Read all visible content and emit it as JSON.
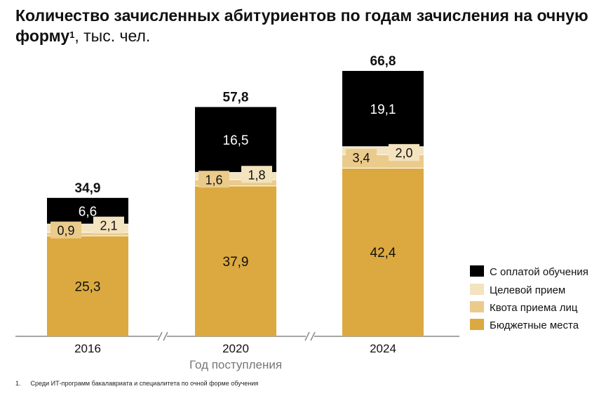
{
  "title": {
    "main": "Количество зачисленных абитуриентов по годам зачисления на очную форму",
    "sup": "1",
    "unit": ", тыс. чел."
  },
  "chart_data": {
    "type": "bar",
    "stacked": true,
    "categories": [
      "2016",
      "2020",
      "2024"
    ],
    "xlabel": "Год поступления",
    "ylabel": "",
    "axis_breaks": true,
    "series": [
      {
        "name": "Бюджетные места",
        "color": "#DBA93F",
        "values": [
          25.3,
          37.9,
          42.4
        ],
        "labels": [
          "25,3",
          "37,9",
          "42,4"
        ]
      },
      {
        "name": "Квота приема лиц",
        "color": "#EACB8C",
        "values": [
          0.9,
          1.6,
          3.4
        ],
        "labels": [
          "0,9",
          "1,6",
          "3,4"
        ]
      },
      {
        "name": "Целевой прием",
        "color": "#F3E3BE",
        "values": [
          2.1,
          1.8,
          2.0
        ],
        "labels": [
          "2,1",
          "1,8",
          "2,0"
        ]
      },
      {
        "name": "С оплатой обучения",
        "color": "#000000",
        "values": [
          6.6,
          16.5,
          19.1
        ],
        "labels": [
          "6,6",
          "16,5",
          "19,1"
        ]
      }
    ],
    "totals": [
      34.9,
      57.8,
      66.8
    ],
    "total_labels": [
      "34,9",
      "57,8",
      "66,8"
    ],
    "legend": [
      "С оплатой обучения",
      "Целевой прием",
      "Квота приема лиц",
      "Бюджетные места"
    ],
    "legend_position": "right"
  },
  "footnote": {
    "number": "1.",
    "text": "Среди ИТ-программ бакалавриата и специалитета по очной форме обучения"
  }
}
